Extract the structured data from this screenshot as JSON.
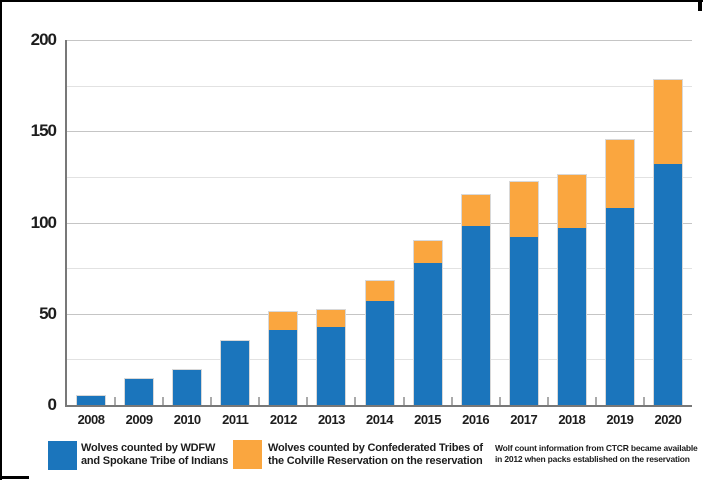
{
  "chart_data": {
    "type": "bar",
    "stacked": true,
    "title": "",
    "xlabel": "",
    "ylabel": "",
    "categories": [
      "2008",
      "2009",
      "2010",
      "2011",
      "2012",
      "2013",
      "2014",
      "2015",
      "2016",
      "2017",
      "2018",
      "2019",
      "2020"
    ],
    "series": [
      {
        "name": "Wolves counted by WDFW and Spokane Tribe of Indians",
        "key": "wdfw",
        "color": "#1B75BC",
        "values": [
          5,
          14,
          19,
          35,
          41,
          43,
          57,
          78,
          98,
          92,
          97,
          108,
          132
        ]
      },
      {
        "name": "Wolves counted by Confederated Tribes of the Colville Reservation on the reservation",
        "key": "ctcr",
        "color": "#FAA63F",
        "values": [
          0,
          0,
          0,
          0,
          10,
          9,
          11,
          12,
          17,
          30,
          29,
          37,
          46
        ]
      }
    ],
    "totals": [
      5,
      14,
      19,
      35,
      51,
      52,
      68,
      90,
      115,
      122,
      126,
      145,
      178
    ],
    "ylim": [
      0,
      200
    ],
    "yticks": [
      0,
      50,
      100,
      150,
      200
    ],
    "gridline_step": 25,
    "grid": true,
    "legend_position": "bottom"
  },
  "legend": {
    "items": [
      {
        "label_line1": "Wolves counted by WDFW",
        "label_line2": "and Spokane Tribe of Indians",
        "color": "#1B75BC"
      },
      {
        "label_line1": "Wolves counted by Confederated Tribes of",
        "label_line2": "the Colville Reservation  on the reservation",
        "color": "#FAA63F"
      }
    ]
  },
  "note": {
    "line1": "Wolf count information from CTCR became available",
    "line2": "in 2012 when packs established on the reservation"
  }
}
